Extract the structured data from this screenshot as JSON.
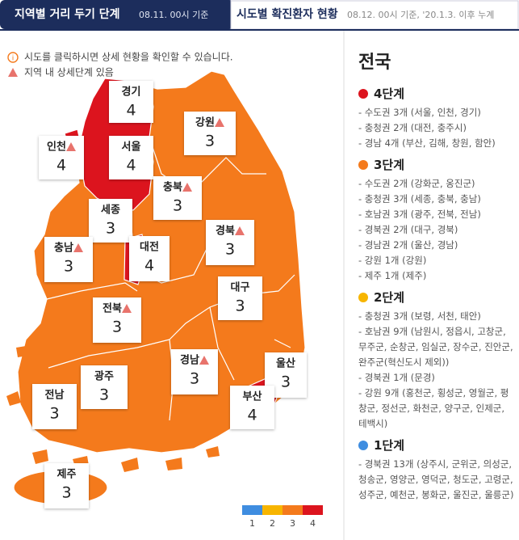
{
  "tabs": [
    {
      "title": "지역별 거리 두기 단계",
      "subtitle": "08.11. 00시 기준"
    },
    {
      "title": "시도별 확진환자 현황",
      "subtitle": "08.12. 00시 기준, '20.1.3. 이후 누계"
    }
  ],
  "notices": [
    "시도를 클릭하시면 상세 현황을 확인할 수 있습니다.",
    "지역 내 상세단계 있음"
  ],
  "map": {
    "regions": [
      {
        "name": "경기",
        "level": 4,
        "detail": false
      },
      {
        "name": "인천",
        "level": 4,
        "detail": true
      },
      {
        "name": "서울",
        "level": 4,
        "detail": false
      },
      {
        "name": "강원",
        "level": 3,
        "detail": true
      },
      {
        "name": "충북",
        "level": 3,
        "detail": true
      },
      {
        "name": "세종",
        "level": 3,
        "detail": false
      },
      {
        "name": "충남",
        "level": 3,
        "detail": true
      },
      {
        "name": "대전",
        "level": 4,
        "detail": false
      },
      {
        "name": "경북",
        "level": 3,
        "detail": true
      },
      {
        "name": "대구",
        "level": 3,
        "detail": false
      },
      {
        "name": "전북",
        "level": 3,
        "detail": true
      },
      {
        "name": "경남",
        "level": 3,
        "detail": true
      },
      {
        "name": "울산",
        "level": 3,
        "detail": false
      },
      {
        "name": "광주",
        "level": 3,
        "detail": false
      },
      {
        "name": "부산",
        "level": 4,
        "detail": false
      },
      {
        "name": "전남",
        "level": 3,
        "detail": false
      },
      {
        "name": "제주",
        "level": 3,
        "detail": false
      }
    ],
    "legend": [
      {
        "level": 1,
        "color": "#3f8de0"
      },
      {
        "level": 2,
        "color": "#f7b500"
      },
      {
        "level": 3,
        "color": "#f47a1c"
      },
      {
        "level": 4,
        "color": "#dc141e"
      }
    ]
  },
  "panel": {
    "title": "전국",
    "groups": [
      {
        "title": "4단계",
        "color": "#dc141e",
        "items": [
          "- 수도권 3개 (서울, 인천, 경기)",
          "- 충청권 2개 (대전, 충주시)",
          "- 경남 4개 (부산, 김해, 창원, 함안)"
        ]
      },
      {
        "title": "3단계",
        "color": "#f47a1c",
        "items": [
          "- 수도권 2개 (강화군, 옹진군)",
          "- 충청권 3개 (세종, 충북, 충남)",
          "- 호남권 3개 (광주, 전북, 전남)",
          "- 경북권 2개 (대구, 경북)",
          "- 경남권 2개 (울산, 경남)",
          "- 강원 1개 (강원)",
          "- 제주 1개 (제주)"
        ]
      },
      {
        "title": "2단계",
        "color": "#f7b500",
        "items": [
          "- 충청권 3개 (보령, 서천, 태안)",
          "- 호남권 9개 (남원시, 정읍시, 고창군, 무주군, 순창군, 임실군, 장수군, 진안군, 완주군(혁신도시 제외))",
          "- 경북권 1개 (문경)",
          "- 강원 9개 (홍천군, 횡성군, 영월군, 평창군, 정선군, 화천군, 양구군, 인제군, 테백시)"
        ]
      },
      {
        "title": "1단계",
        "color": "#3f8de0",
        "items": [
          "- 경북권 13개 (상주시, 군위군, 의성군, 청송군, 영양군, 영덕군, 청도군, 고령군, 성주군, 예천군, 봉화군, 울진군, 울릉군)"
        ]
      }
    ]
  }
}
